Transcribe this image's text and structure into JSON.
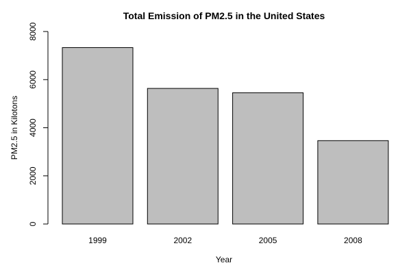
{
  "chart_data": {
    "type": "bar",
    "title": "Total Emission of PM2.5 in the United States",
    "xlabel": "Year",
    "ylabel": "PM2.5 in Kilotons",
    "categories": [
      "1999",
      "2002",
      "2005",
      "2008"
    ],
    "values": [
      7332,
      5635,
      5454,
      3464
    ],
    "ylim": [
      0,
      8000
    ],
    "yticks": [
      0,
      2000,
      4000,
      6000,
      8000
    ],
    "grid": false,
    "bar_color": "#bebebe"
  }
}
